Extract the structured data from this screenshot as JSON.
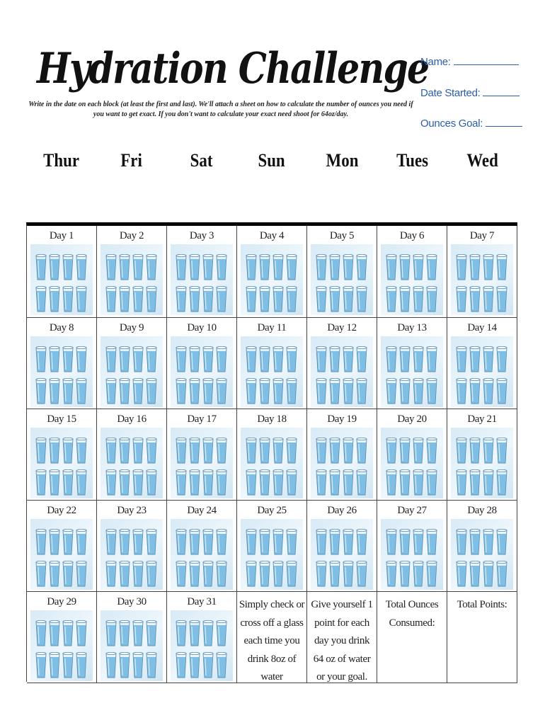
{
  "header": {
    "title": "Hydration Challenge",
    "instructions": "Write in the date on each block (at least the first and last). We'll attach a sheet on how to calculate the number of ounces you need if you want to get exact. If you don't want to calculate your exact need shoot for 64oz/day.",
    "fields": {
      "name_label": "Name:",
      "date_started_label": "Date Started:",
      "ounces_goal_label": "Ounces Goal:"
    }
  },
  "weekdays": [
    "Thur",
    "Fri",
    "Sat",
    "Sun",
    "Mon",
    "Tues",
    "Wed"
  ],
  "days": [
    "Day 1",
    "Day 2",
    "Day 3",
    "Day 4",
    "Day 5",
    "Day 6",
    "Day 7",
    "Day 8",
    "Day 9",
    "Day 10",
    "Day 11",
    "Day 12",
    "Day 13",
    "Day 14",
    "Day 15",
    "Day 16",
    "Day 17",
    "Day 18",
    "Day 19",
    "Day 20",
    "Day 21",
    "Day 22",
    "Day 23",
    "Day 24",
    "Day 25",
    "Day 26",
    "Day 27",
    "Day 28",
    "Day 29",
    "Day 30",
    "Day 31"
  ],
  "glasses_per_day": 8,
  "notes": {
    "check_off": "Simply check or cross off a glass each time you drink 8oz of water",
    "points": "Give yourself 1 point for each day you drink 64 oz of water or your goal.",
    "total_ounces": "Total Ounces Consumed:",
    "total_points": "Total Points:"
  },
  "colors": {
    "accent": "#2b5fa8",
    "water": "#7fbfe6",
    "glass_panel": "#e3f1fa"
  }
}
